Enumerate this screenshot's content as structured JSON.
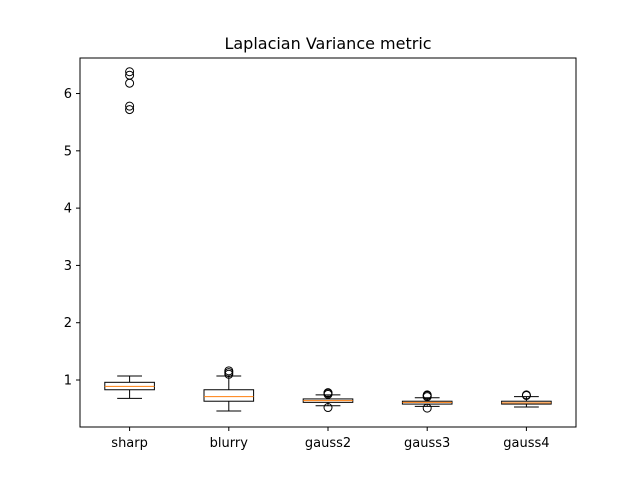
{
  "chart_data": {
    "type": "boxplot",
    "title": "Laplacian Variance metric",
    "xlabel": "",
    "ylabel": "",
    "ylim": [
      0.18,
      6.62
    ],
    "yticks": [
      1,
      2,
      3,
      4,
      5,
      6
    ],
    "grid": false,
    "categories": [
      "sharp",
      "blurry",
      "gauss2",
      "gauss3",
      "gauss4"
    ],
    "boxes": [
      {
        "label": "sharp",
        "whisker_low": 0.68,
        "q1": 0.83,
        "median": 0.89,
        "q3": 0.96,
        "whisker_high": 1.07,
        "outliers": [
          5.72,
          5.78,
          6.18,
          6.32,
          6.38
        ]
      },
      {
        "label": "blurry",
        "whisker_low": 0.46,
        "q1": 0.63,
        "median": 0.71,
        "q3": 0.83,
        "whisker_high": 1.07,
        "outliers": [
          1.1,
          1.13,
          1.16
        ]
      },
      {
        "label": "gauss2",
        "whisker_low": 0.55,
        "q1": 0.61,
        "median": 0.64,
        "q3": 0.67,
        "whisker_high": 0.74,
        "outliers": [
          0.52,
          0.75,
          0.77,
          0.78
        ]
      },
      {
        "label": "gauss3",
        "whisker_low": 0.54,
        "q1": 0.58,
        "median": 0.61,
        "q3": 0.63,
        "whisker_high": 0.69,
        "outliers": [
          0.51,
          0.71,
          0.73,
          0.74
        ]
      },
      {
        "label": "gauss4",
        "whisker_low": 0.53,
        "q1": 0.58,
        "median": 0.6,
        "q3": 0.63,
        "whisker_high": 0.71,
        "outliers": [
          0.73,
          0.74
        ]
      }
    ],
    "colors": {
      "box": "#000000",
      "median": "#ff7f0e",
      "flier": "#000000",
      "background": "#ffffff"
    }
  }
}
